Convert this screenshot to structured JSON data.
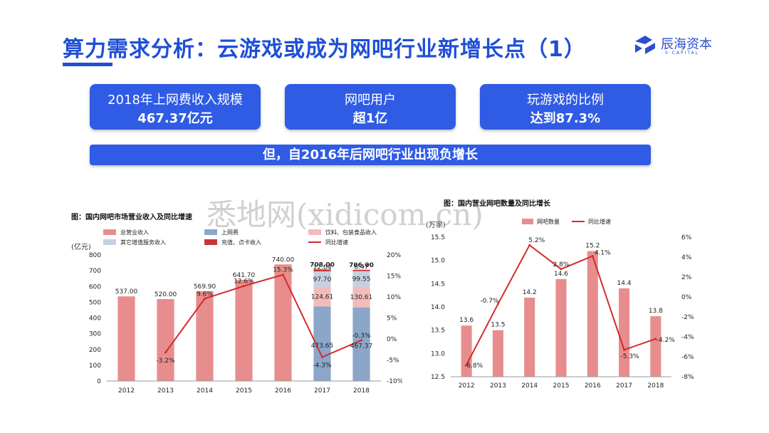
{
  "slide": {
    "title": "算力需求分析：云游戏或成为网吧行业新增长点（1）",
    "brand": {
      "name": "辰海资本",
      "sub": "S·CAPITAL"
    },
    "watermark": "悉地网(xidicom.cn)",
    "cards": [
      {
        "line1": "2018年上网费收入规模",
        "line2": "467.37亿元"
      },
      {
        "line1": "网吧用户",
        "line2": "超1亿"
      },
      {
        "line1": "玩游戏的比例",
        "line2": "达到87.3%"
      }
    ],
    "banner": "但，自2016年后网吧行业出现负增长"
  },
  "chart_data": [
    {
      "type": "bar",
      "title": "图：国内网吧市场营业收入及同比增速",
      "y_unit": "(亿元)",
      "categories": [
        "2012",
        "2013",
        "2014",
        "2015",
        "2016",
        "2017",
        "2018"
      ],
      "ylim": [
        0,
        800
      ],
      "y_ticks": [
        0,
        100,
        200,
        300,
        400,
        500,
        600,
        700,
        800
      ],
      "y2lim": [
        -10,
        20
      ],
      "y2_ticks": [
        "-10%",
        "-5%",
        "0%",
        "5%",
        "10%",
        "15%",
        "20%"
      ],
      "legend": [
        "总营业收入",
        "上网费",
        "饮料、包装食品收入",
        "其它增值服务收入",
        "充值、点卡收入",
        "同比增速"
      ],
      "colors": {
        "total": "#e88d8d",
        "net_fee": "#8ba6c8",
        "drinks": "#f2bcbc",
        "other": "#c6d1df",
        "recharge": "#c73636",
        "growth": "#d42a2a"
      },
      "total_values": [
        537.0,
        520.0,
        569.9,
        641.7,
        740.0,
        null,
        null
      ],
      "stack_totals": [
        null,
        null,
        null,
        null,
        null,
        708.0,
        706.0
      ],
      "total_labels": [
        "537.00",
        "520.00",
        "569.90",
        "641.70",
        "740.00",
        "708.00",
        "706.00"
      ],
      "net_fee": [
        null,
        null,
        null,
        null,
        null,
        473.65,
        467.37
      ],
      "drinks": [
        null,
        null,
        null,
        null,
        null,
        124.61,
        130.61
      ],
      "other": [
        null,
        null,
        null,
        null,
        null,
        97.7,
        99.55
      ],
      "recharge": [
        null,
        null,
        null,
        null,
        null,
        12.04,
        8.47
      ],
      "stack_labels": {
        "net_fee": [
          "473.65",
          "467.37"
        ],
        "drinks": [
          "124.61",
          "130.61"
        ],
        "other": [
          "97.70",
          "99.55"
        ],
        "recharge": [
          "12.04",
          "8.47"
        ]
      },
      "growth": [
        null,
        -3.2,
        9.6,
        12.6,
        15.3,
        -4.3,
        -0.3
      ],
      "growth_labels": [
        "",
        "-3.2%",
        "9.6%",
        "12.6%",
        "15.3%",
        "-4.3%",
        "-0.3%"
      ]
    },
    {
      "type": "bar",
      "title": "图：国内营业网吧数量及同比增长",
      "y_unit": "(万家)",
      "categories": [
        "2012",
        "2013",
        "2014",
        "2015",
        "2016",
        "2017",
        "2018"
      ],
      "ylim": [
        12.5,
        15.5
      ],
      "y_ticks": [
        "12.5",
        "13.0",
        "13.5",
        "14.0",
        "14.5",
        "15.0",
        "15.5"
      ],
      "y2lim": [
        -8,
        6
      ],
      "y2_ticks": [
        "-8%",
        "-6%",
        "-4%",
        "-2%",
        "0%",
        "2%",
        "4%",
        "6%"
      ],
      "legend": [
        "网吧数量",
        "同比增速"
      ],
      "colors": {
        "bar": "#e88d8d",
        "line": "#d42a2a"
      },
      "values": [
        13.6,
        13.5,
        14.2,
        14.6,
        15.2,
        14.4,
        13.8
      ],
      "value_labels": [
        "13.6",
        "13.5",
        "14.2",
        "14.6",
        "15.2",
        "14.4",
        "13.8"
      ],
      "growth": [
        -6.8,
        -0.7,
        5.2,
        2.8,
        4.1,
        -5.3,
        -4.2
      ],
      "growth_labels": [
        "-6.8%",
        "-0.7%",
        "5.2%",
        "2.8%",
        "4.1%",
        "-5.3%",
        "-4.2%"
      ]
    }
  ]
}
